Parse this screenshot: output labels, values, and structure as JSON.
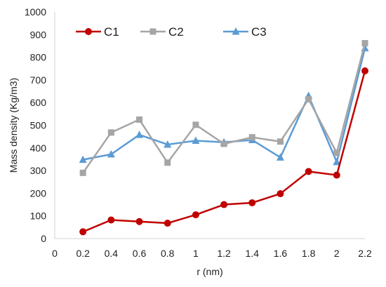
{
  "chart_data": {
    "type": "line",
    "title": "",
    "xlabel": "r (nm)",
    "ylabel": "Mass density (Kg/m3)",
    "xlim": [
      0,
      2.2
    ],
    "ylim": [
      0,
      1000
    ],
    "xticks": [
      "0",
      "0.2",
      "0.4",
      "0.6",
      "0.8",
      "1",
      "1.2",
      "1.4",
      "1.6",
      "1.8",
      "2",
      "2.2"
    ],
    "yticks": [
      "0",
      "100",
      "200",
      "300",
      "400",
      "500",
      "600",
      "700",
      "800",
      "900",
      "1000"
    ],
    "x": [
      0.2,
      0.4,
      0.6,
      0.8,
      1.0,
      1.2,
      1.4,
      1.6,
      1.8,
      2.0,
      2.2
    ],
    "grid": false,
    "legend_position": "top",
    "series": [
      {
        "name": "C1",
        "color": "#c00000",
        "marker": "circle",
        "values": [
          30,
          82,
          75,
          68,
          105,
          150,
          158,
          198,
          296,
          280,
          740
        ]
      },
      {
        "name": "C2",
        "color": "#a5a5a5",
        "marker": "square",
        "values": [
          290,
          468,
          525,
          335,
          502,
          418,
          447,
          428,
          615,
          378,
          862
        ]
      },
      {
        "name": "C3",
        "color": "#5b9bd5",
        "marker": "triangle",
        "values": [
          348,
          372,
          458,
          415,
          432,
          425,
          435,
          358,
          630,
          338,
          840
        ]
      }
    ]
  }
}
